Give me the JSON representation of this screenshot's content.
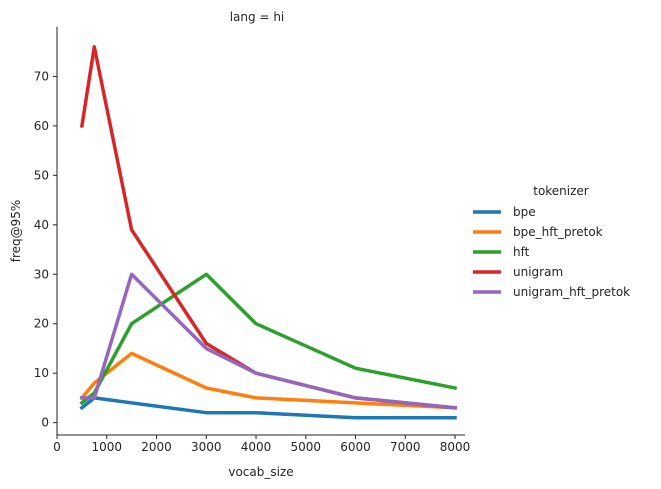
{
  "chart_data": {
    "type": "line",
    "title": "lang = hi",
    "xlabel": "vocab_size",
    "ylabel": "freq@95%",
    "xlim": [
      0,
      8200
    ],
    "ylim": [
      -2.5,
      80
    ],
    "xticks": [
      0,
      1000,
      2000,
      3000,
      4000,
      5000,
      6000,
      7000,
      8000
    ],
    "yticks": [
      0,
      10,
      20,
      30,
      40,
      50,
      60,
      70
    ],
    "grid": false,
    "legend": {
      "title": "tokenizer",
      "placement": "right"
    },
    "x": [
      500,
      750,
      1500,
      3000,
      4000,
      6000,
      8000
    ],
    "series": [
      {
        "name": "bpe",
        "color": "#1f77b4",
        "values": [
          3,
          5,
          4,
          2,
          2,
          1,
          1
        ]
      },
      {
        "name": "bpe_hft_pretok",
        "color": "#ff7f0e",
        "values": [
          5,
          8,
          14,
          7,
          5,
          4,
          3
        ]
      },
      {
        "name": "hft",
        "color": "#2ca02c",
        "values": [
          4,
          6,
          20,
          30,
          20,
          11,
          7
        ]
      },
      {
        "name": "unigram",
        "color": "#d62728",
        "values": [
          60,
          76,
          39,
          16,
          10,
          5,
          3
        ]
      },
      {
        "name": "unigram_hft_pretok",
        "color": "#9467bd",
        "values": [
          5,
          5,
          30,
          15,
          10,
          5,
          3
        ]
      }
    ]
  }
}
